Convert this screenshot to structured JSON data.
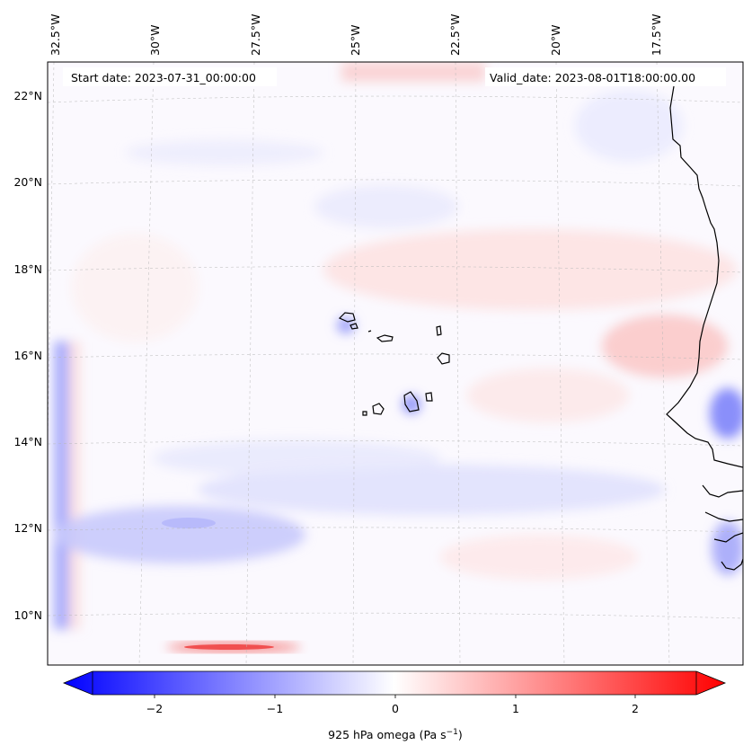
{
  "map": {
    "start_label": "Start date: 2023-07-31_00:00:00",
    "valid_label": "Valid_date: 2023-08-01T18:00:00.00",
    "variable": "925 hPa omega",
    "units": "Pa s",
    "units_exponent": "−1",
    "lon_labels": [
      "32.5°W",
      "30°W",
      "27.5°W",
      "25°W",
      "22.5°W",
      "20°W",
      "17.5°W"
    ],
    "lat_labels": [
      "22°N",
      "20°N",
      "18°N",
      "16°N",
      "14°N",
      "12°N",
      "10°N"
    ],
    "colorbar": {
      "ticks": [
        "−2",
        "−1",
        "0",
        "1",
        "2"
      ],
      "range": [
        -2.6,
        2.6
      ],
      "extend": "both",
      "cmap": "bwr",
      "color_min": "#0000ff",
      "color_mid": "#ffffff",
      "color_max": "#ff0000"
    },
    "gridlines": "dashed",
    "coastline_color": "#000000"
  }
}
